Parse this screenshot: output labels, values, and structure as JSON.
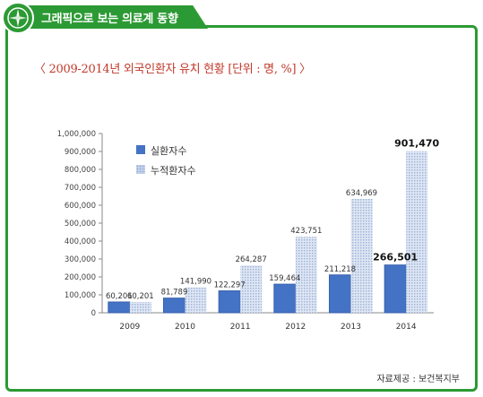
{
  "header": {
    "title": "그래픽으로 보는 의료계 동향"
  },
  "colors": {
    "accent": "#2c9a34",
    "title": "#c0392b",
    "series1": "#4472c4",
    "series2": "#c5d3ea"
  },
  "chart_data": {
    "type": "bar",
    "title": "〈 2009-2014년 외국인환자 유치 현황 [단위 : 명, %] 〉",
    "categories": [
      "2009",
      "2010",
      "2011",
      "2012",
      "2013",
      "2014"
    ],
    "series": [
      {
        "name": "실환자수",
        "values": [
          60201,
          81789,
          122297,
          159464,
          211218,
          266501
        ],
        "labels": [
          "60,201",
          "81,789",
          "122,297",
          "159,464",
          "211,218",
          "266,501"
        ]
      },
      {
        "name": "누적환자수",
        "values": [
          60201,
          141990,
          264287,
          423751,
          634969,
          901470
        ],
        "labels": [
          "60,201",
          "141,990",
          "264,287",
          "423,751",
          "634,969",
          "901,470"
        ]
      }
    ],
    "yticks": [
      "0",
      "100,000",
      "200,000",
      "300,000",
      "400,000",
      "500,000",
      "600,000",
      "700,000",
      "800,000",
      "900,000",
      "1,000,000"
    ],
    "ylim": [
      0,
      1000000
    ],
    "legend_position": "top-left"
  },
  "source": "자료제공 : 보건복지부"
}
